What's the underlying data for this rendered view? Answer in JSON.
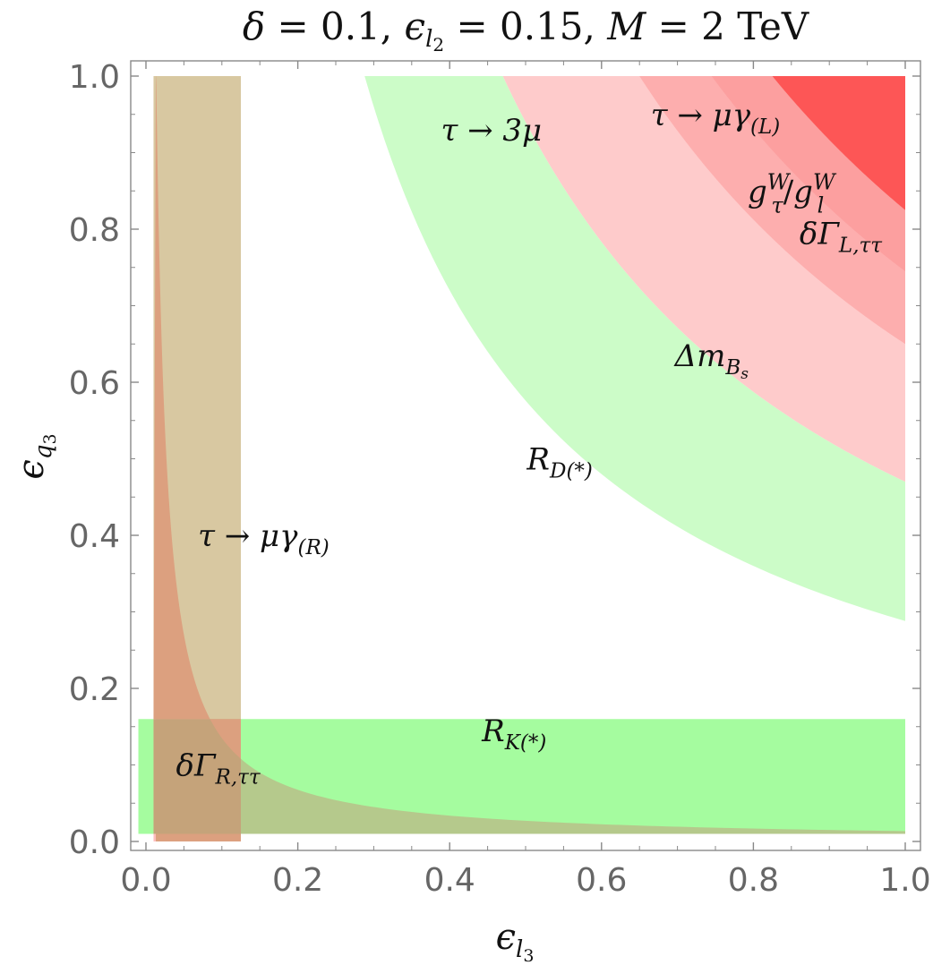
{
  "chart_data": {
    "type": "area",
    "title": {
      "delta": "δ",
      "delta_value": " = 0.1,",
      "eps": "ϵ",
      "eps_sub": "l",
      "eps_subsub": "2",
      "eps_value": " = 0.15,",
      "M": "M",
      "M_value": " = 2 TeV"
    },
    "xlabel": {
      "main": "ϵ",
      "sub": "l",
      "subsub": "3"
    },
    "ylabel": {
      "main": "ϵ",
      "sub": "q",
      "subsub": "3"
    },
    "xlim": [
      0.0,
      1.0
    ],
    "ylim": [
      0.0,
      1.0
    ],
    "x_ticks": [
      "0.0",
      "0.2",
      "0.4",
      "0.6",
      "0.8",
      "1.0"
    ],
    "y_ticks": [
      "0.0",
      "0.2",
      "0.4",
      "0.6",
      "0.8",
      "1.0"
    ],
    "x_tick_values": [
      0.0,
      0.2,
      0.4,
      0.6,
      0.8,
      1.0
    ],
    "y_tick_values": [
      0.0,
      0.2,
      0.4,
      0.6,
      0.8,
      1.0
    ],
    "grid": false,
    "colors": {
      "rd_green": "#ccfcc8",
      "rk_green": "#a5fc9f",
      "light_pink": "#fecbcb",
      "mid_pink": "#fdaeae",
      "pink": "#fc9f9f",
      "red": "#fd5656",
      "brown_band": "#d8c8a1",
      "left_pink": "#fdbdbd",
      "salmon": "#dca07f",
      "olive_overlap": "#b5c98c",
      "dark_overlap": "#c5a37a"
    },
    "regions": [
      {
        "name": "RD",
        "shape": "outside-curve",
        "k": 0.288,
        "xrange": [
          0.0,
          1.0
        ]
      },
      {
        "name": "DeltaMBs",
        "shape": "outside-curve",
        "k": 0.47,
        "xrange": [
          0.42,
          1.0
        ]
      },
      {
        "name": "dGammaL",
        "shape": "outside-curve",
        "k": 0.65,
        "xrange": [
          0.47,
          1.0
        ]
      },
      {
        "name": "gtau",
        "shape": "outside-curve",
        "k": 0.745,
        "xrange": [
          0.47,
          1.0
        ]
      },
      {
        "name": "tauMuGammaL",
        "shape": "outside-curve",
        "k": 0.825,
        "xrange": [
          0.77,
          1.0
        ]
      },
      {
        "name": "RK",
        "shape": "band",
        "y": [
          0.01,
          0.16
        ],
        "x": [
          0.0,
          1.0
        ]
      },
      {
        "name": "tauMuGammaR",
        "shape": "band",
        "x": [
          0.01,
          0.125
        ],
        "y": [
          0.0,
          1.0
        ]
      },
      {
        "name": "dGammaR",
        "shape": "inside-curve",
        "k": 0.0135,
        "x": [
          0.01,
          1.0
        ]
      }
    ],
    "annotations": [
      {
        "id": "tau3mu",
        "text": "τ → 3μ",
        "x": 0.455,
        "y": 0.93
      },
      {
        "id": "tauMuGammaL",
        "main": "τ → μγ",
        "sub": "(L)",
        "x": 0.75,
        "y": 0.95
      },
      {
        "id": "gtauW",
        "text": "g",
        "sub": "τ",
        "sup": "W",
        "sep": "/",
        "text2": "g",
        "sub2": "l",
        "sup2": "W",
        "x": 0.85,
        "y": 0.85
      },
      {
        "id": "dGammaLtt",
        "main": "δΓ",
        "sub": "L,ττ",
        "x": 0.915,
        "y": 0.795
      },
      {
        "id": "DeltaMBs",
        "main": "Δm",
        "sub": "B",
        "subsub": "s",
        "x": 0.745,
        "y": 0.635
      },
      {
        "id": "RDstar",
        "main": "R",
        "sub": "D(*)",
        "x": 0.545,
        "y": 0.5
      },
      {
        "id": "tauMuGammaR",
        "main": "τ → μγ",
        "sub": "(R)",
        "x": 0.155,
        "y": 0.4
      },
      {
        "id": "RKstar",
        "main": "R",
        "sub": "K(*)",
        "x": 0.485,
        "y": 0.145
      },
      {
        "id": "dGammaRtt",
        "main": "δΓ",
        "sub": "R,ττ",
        "x": 0.095,
        "y": 0.1
      }
    ]
  }
}
